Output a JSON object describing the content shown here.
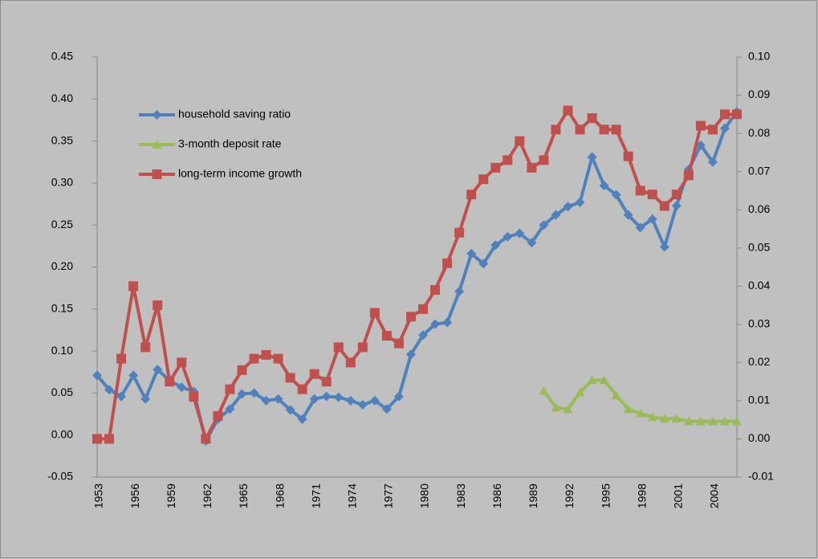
{
  "chart_data": {
    "type": "line",
    "categories": [
      "1953",
      null,
      null,
      "1956",
      null,
      null,
      "1959",
      null,
      null,
      "1962",
      null,
      null,
      "1965",
      null,
      null,
      "1968",
      null,
      null,
      "1971",
      null,
      null,
      "1974",
      null,
      null,
      "1977",
      null,
      null,
      "1980",
      null,
      null,
      "1983",
      null,
      null,
      "1986",
      null,
      null,
      "1989",
      null,
      null,
      "1992",
      null,
      null,
      "1995",
      null,
      null,
      "1998",
      null,
      null,
      "2001",
      null,
      null,
      "2004",
      null,
      null
    ],
    "series": [
      {
        "name": "household saving ratio",
        "color": "#4f81bd",
        "marker": "diamond",
        "axis": "y",
        "values": [
          0.071,
          0.054,
          0.046,
          0.071,
          0.043,
          0.078,
          0.065,
          0.057,
          0.052,
          -0.007,
          0.019,
          0.031,
          0.049,
          0.05,
          0.041,
          0.043,
          0.03,
          0.019,
          0.043,
          0.046,
          0.045,
          0.041,
          0.036,
          0.041,
          0.031,
          0.046,
          0.096,
          0.119,
          0.132,
          0.134,
          0.171,
          0.216,
          0.204,
          0.226,
          0.236,
          0.24,
          0.229,
          0.25,
          0.262,
          0.272,
          0.277,
          0.331,
          0.297,
          0.286,
          0.262,
          0.247,
          0.257,
          0.224,
          0.273,
          0.316,
          0.345,
          0.325,
          0.365,
          0.385
        ]
      },
      {
        "name": "3-month deposit rate",
        "color": "#9bbb59",
        "marker": "triangle",
        "axis": "y2",
        "values": [
          null,
          null,
          null,
          null,
          null,
          null,
          null,
          null,
          null,
          null,
          null,
          null,
          null,
          null,
          null,
          null,
          null,
          null,
          null,
          null,
          null,
          null,
          null,
          null,
          null,
          null,
          null,
          null,
          null,
          null,
          null,
          null,
          null,
          null,
          null,
          null,
          null,
          0.0126,
          0.0082,
          0.0078,
          0.0122,
          0.0154,
          0.0154,
          0.0114,
          0.0078,
          0.0067,
          0.0057,
          0.0053,
          0.0053,
          0.0046,
          0.0046,
          0.0046,
          0.0046,
          0.0046
        ]
      },
      {
        "name": "long-term income growth",
        "color": "#c0504d",
        "marker": "square",
        "axis": "y2",
        "values": [
          0.0,
          0.0,
          0.021,
          0.04,
          0.024,
          0.035,
          0.015,
          0.02,
          0.011,
          0.0,
          0.006,
          0.013,
          0.018,
          0.021,
          0.022,
          0.021,
          0.016,
          0.013,
          0.017,
          0.015,
          0.024,
          0.02,
          0.024,
          0.033,
          0.027,
          0.025,
          0.032,
          0.034,
          0.039,
          0.046,
          0.054,
          0.064,
          0.068,
          0.071,
          0.073,
          0.078,
          0.071,
          0.073,
          0.081,
          0.086,
          0.081,
          0.084,
          0.081,
          0.081,
          0.074,
          0.065,
          0.064,
          0.061,
          0.064,
          0.069,
          0.082,
          0.081,
          0.085,
          0.085
        ]
      }
    ],
    "ylim": [
      -0.05,
      0.45
    ],
    "yticks": [
      {
        "value": -0.05,
        "label": "-0.05"
      },
      {
        "value": 0,
        "label": "0.00"
      },
      0.05,
      {
        "value": 0.1,
        "label": "0.10"
      },
      0.15,
      {
        "value": 0.2,
        "label": "0.20"
      },
      0.25,
      {
        "value": 0.3,
        "label": "0.30"
      },
      0.35,
      {
        "value": 0.4,
        "label": "0.40"
      },
      0.45
    ],
    "y2lim": [
      -0.01,
      0.1
    ],
    "y2ticks": [
      -0.01,
      {
        "value": 0,
        "label": "0.00"
      },
      0.01,
      0.02,
      0.03,
      0.04,
      0.05,
      0.06,
      0.07,
      0.08,
      0.09,
      {
        "value": 0.1,
        "label": "0.10"
      }
    ],
    "legend": "upper left"
  }
}
